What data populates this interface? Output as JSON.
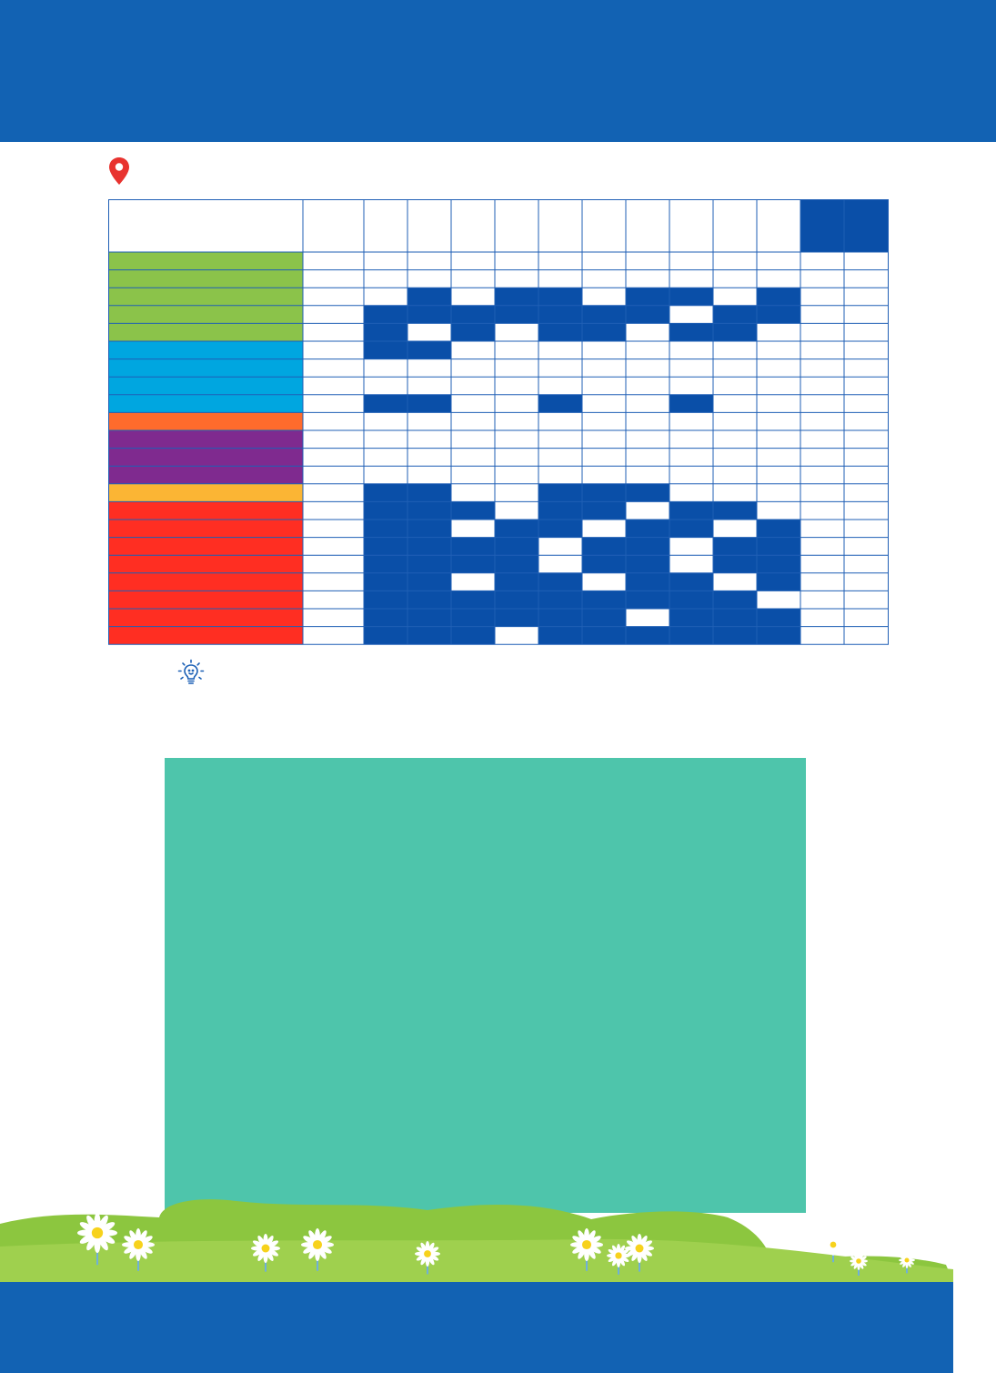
{
  "colors": {
    "banner": "#1262b3",
    "pin": "#e8332f",
    "grid_line": "#1f5fb5",
    "filled_cell": "#0a4fa8",
    "info_box": "#4ec5ab",
    "meadow": "#8cc63f"
  },
  "icons": {
    "location": "map-pin-icon",
    "tip": "lightbulb-icon"
  },
  "calendar": {
    "row_category_colors": [
      "#8bc34a",
      "#8bc34a",
      "#8bc34a",
      "#8bc34a",
      "#8bc34a",
      "#00a6e0",
      "#00a6e0",
      "#00a6e0",
      "#00a6e0",
      "#ff6b2c",
      "#7f2a8f",
      "#7f2a8f",
      "#7f2a8f",
      "#fbb534",
      "#ff2e22",
      "#ff2e22",
      "#ff2e22",
      "#ff2e22",
      "#ff2e22",
      "#ff2e22",
      "#ff2e22",
      "#ff2e22"
    ],
    "header_filled_columns": [
      11,
      12
    ],
    "filled_cells": [
      [],
      [],
      [
        2,
        4,
        5,
        7,
        8,
        10
      ],
      [
        1,
        2,
        3,
        4,
        5,
        6,
        7,
        9,
        10
      ],
      [
        1,
        3,
        5,
        6,
        8,
        9
      ],
      [
        1,
        2
      ],
      [],
      [],
      [
        1,
        2,
        5,
        8
      ],
      [],
      [],
      [],
      [],
      [
        1,
        2,
        5,
        6,
        7
      ],
      [
        1,
        2,
        3,
        5,
        6,
        8,
        9
      ],
      [
        1,
        2,
        4,
        5,
        7,
        8,
        10
      ],
      [
        1,
        2,
        3,
        4,
        6,
        7,
        9,
        10
      ],
      [
        1,
        2,
        3,
        4,
        6,
        7,
        9,
        10
      ],
      [
        1,
        2,
        4,
        5,
        7,
        8,
        10
      ],
      [
        1,
        2,
        3,
        4,
        5,
        6,
        7,
        8,
        9
      ],
      [
        1,
        2,
        3,
        4,
        5,
        6,
        8,
        9,
        10
      ],
      [
        1,
        2,
        3,
        5,
        6,
        7,
        8,
        9,
        10
      ]
    ]
  }
}
